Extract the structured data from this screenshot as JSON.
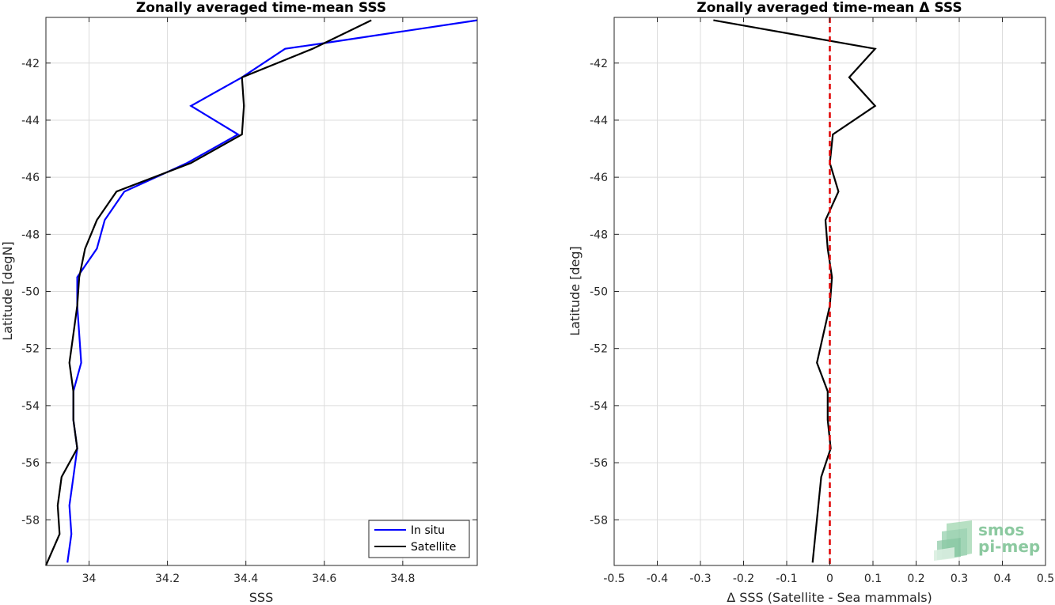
{
  "chart_data": [
    {
      "type": "line",
      "title": "Zonally averaged time-mean SSS",
      "xlabel": "SSS",
      "ylabel": "Latitude [degN]",
      "xlim": [
        33.89,
        34.99
      ],
      "ylim": [
        -59.6,
        -40.4
      ],
      "xticks": [
        34,
        34.2,
        34.4,
        34.6,
        34.8
      ],
      "xtick_labels": [
        "34",
        "34.2",
        "34.4",
        "34.6",
        "34.8"
      ],
      "yticks": [
        -58,
        -56,
        -54,
        -52,
        -50,
        -48,
        -46,
        -44,
        -42
      ],
      "ytick_labels": [
        "-58",
        "-56",
        "-54",
        "-52",
        "-50",
        "-48",
        "-46",
        "-44",
        "-42"
      ],
      "grid": true,
      "legend_position": "bottom-right",
      "series": [
        {
          "name": "In situ",
          "color": "#0000ff",
          "x": [
            35.0,
            34.6,
            34.5,
            34.39,
            34.26,
            34.38,
            34.25,
            34.09,
            34.04,
            34.02,
            33.97,
            33.97,
            33.975,
            33.98,
            33.96,
            33.96,
            33.97,
            33.96,
            33.95,
            33.955,
            33.945
          ],
          "y": [
            -40.5,
            -41.3,
            -41.5,
            -42.5,
            -43.5,
            -44.5,
            -45.5,
            -46.5,
            -47.5,
            -48.5,
            -49.5,
            -50.5,
            -51.5,
            -52.5,
            -53.5,
            -54.5,
            -55.5,
            -56.5,
            -57.5,
            -58.5,
            -59.5
          ]
        },
        {
          "name": "Satellite",
          "color": "#000000",
          "x": [
            34.72,
            34.57,
            34.39,
            34.395,
            34.39,
            34.26,
            34.07,
            34.02,
            33.99,
            33.975,
            33.97,
            33.96,
            33.95,
            33.96,
            33.96,
            33.97,
            33.93,
            33.92,
            33.925,
            33.89
          ],
          "y": [
            -40.5,
            -41.5,
            -42.5,
            -43.5,
            -44.5,
            -45.5,
            -46.5,
            -47.5,
            -48.5,
            -49.5,
            -50.5,
            -51.5,
            -52.5,
            -53.5,
            -54.5,
            -55.5,
            -56.5,
            -57.5,
            -58.5,
            -59.6
          ]
        }
      ]
    },
    {
      "type": "line",
      "title": "Zonally averaged time-mean Δ SSS",
      "xlabel": "Δ SSS (Satellite - Sea mammals)",
      "ylabel": "Latitude [deg]",
      "xlim": [
        -0.5,
        0.5
      ],
      "ylim": [
        -59.6,
        -40.4
      ],
      "xticks": [
        -0.5,
        -0.4,
        -0.3,
        -0.2,
        -0.1,
        0,
        0.1,
        0.2,
        0.3,
        0.4,
        0.5
      ],
      "xtick_labels": [
        "-0.5",
        "-0.4",
        "-0.3",
        "-0.2",
        "-0.1",
        "0",
        "0.1",
        "0.2",
        "0.3",
        "0.4",
        "0.5"
      ],
      "yticks": [
        -58,
        -56,
        -54,
        -52,
        -50,
        -48,
        -46,
        -44,
        -42
      ],
      "ytick_labels": [
        "-58",
        "-56",
        "-54",
        "-52",
        "-50",
        "-48",
        "-46",
        "-44",
        "-42"
      ],
      "grid": true,
      "reference_line": {
        "x": 0,
        "color": "#e00000",
        "style": "dashed"
      },
      "series": [
        {
          "color": "#000000",
          "x": [
            -0.27,
            0.105,
            0.045,
            0.105,
            0.007,
            0.0,
            0.02,
            -0.01,
            -0.005,
            0.005,
            0.0,
            -0.03,
            -0.005,
            -0.005,
            0.002,
            -0.02,
            -0.04
          ],
          "y": [
            -40.5,
            -41.5,
            -42.5,
            -43.5,
            -44.5,
            -45.5,
            -46.5,
            -47.5,
            -48.5,
            -49.5,
            -50.5,
            -52.5,
            -53.5,
            -54.5,
            -55.5,
            -56.5,
            -59.5
          ]
        }
      ]
    }
  ],
  "logo": {
    "line1": "smos",
    "line2": "pi-mep",
    "color": "#8cc9a0"
  }
}
